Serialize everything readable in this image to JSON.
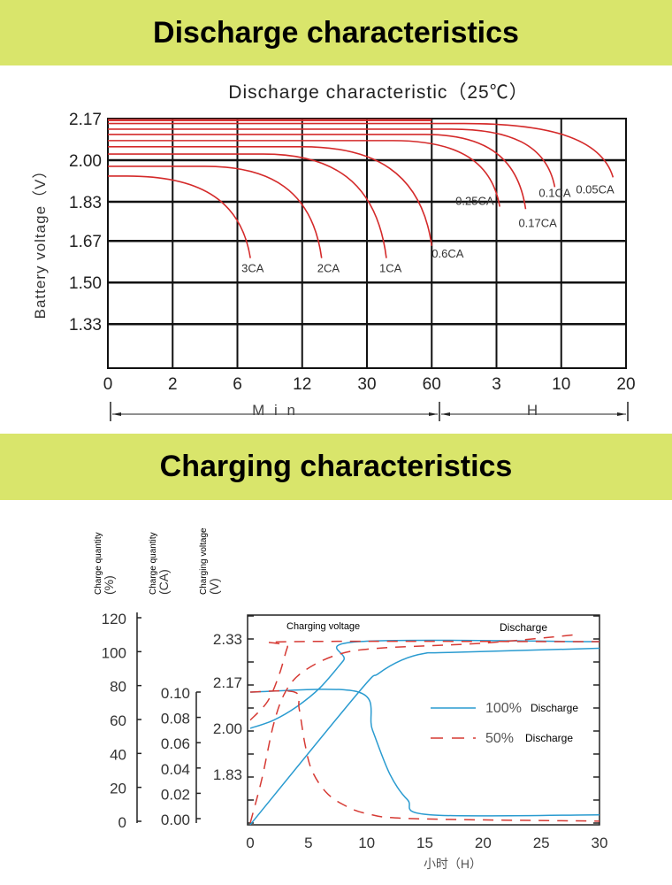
{
  "sections": {
    "discharge_title": "Discharge characteristics",
    "charging_title": "Charging characteristics"
  },
  "chart_data": [
    {
      "type": "line",
      "title": "Discharge characteristic（25℃）",
      "ylabel": "Battery voltage（V）",
      "y_ticks": [
        "2.17",
        "2.00",
        "1.83",
        "1.67",
        "1.50",
        "1.33"
      ],
      "y_values": [
        2.17,
        2.0,
        1.83,
        1.67,
        1.5,
        1.33
      ],
      "ylim": [
        1.16,
        2.17
      ],
      "x_ticks": [
        "0",
        "2",
        "6",
        "12",
        "30",
        "60",
        "3",
        "10",
        "20"
      ],
      "x_units": [
        {
          "label": "M i n",
          "from_tick": 0,
          "to_tick": 5
        },
        {
          "label": "H",
          "from_tick": 5,
          "to_tick": 8
        }
      ],
      "grid": true,
      "color": "#d42a2a",
      "series": [
        {
          "name": "3CA",
          "start_v": 1.935,
          "knee_tick": 0.3,
          "end_tick": 2.2,
          "end_v": 1.6
        },
        {
          "name": "2CA",
          "start_v": 1.975,
          "knee_tick": 1.5,
          "end_tick": 3.3,
          "end_v": 1.6
        },
        {
          "name": "1CA",
          "start_v": 2.025,
          "knee_tick": 2.4,
          "end_tick": 4.3,
          "end_v": 1.6
        },
        {
          "name": "0.6CA",
          "start_v": 2.055,
          "knee_tick": 3.0,
          "end_tick": 5.0,
          "end_v": 1.65
        },
        {
          "name": "0.25CA",
          "start_v": 2.08,
          "knee_tick": 4.4,
          "end_tick": 6.05,
          "end_v": 1.81
        },
        {
          "name": "0.17CA",
          "start_v": 2.105,
          "knee_tick": 4.9,
          "end_tick": 6.45,
          "end_v": 1.8
        },
        {
          "name": "0.1CA",
          "start_v": 2.127,
          "knee_tick": 5.3,
          "end_tick": 6.9,
          "end_v": 1.89
        },
        {
          "name": "0.05CA",
          "start_v": 2.15,
          "knee_tick": 5.5,
          "end_tick": 7.8,
          "end_v": 1.93
        }
      ]
    },
    {
      "type": "line",
      "xlabel": "小时（H）",
      "x_ticks": [
        "0",
        "5",
        "10",
        "15",
        "20",
        "25",
        "30"
      ],
      "xlim": [
        0,
        30
      ],
      "axes": {
        "quantity_pct": {
          "label": "Charge quantity",
          "unit": "(%)",
          "ticks": [
            "120",
            "100",
            "80",
            "60",
            "40",
            "20",
            "0"
          ]
        },
        "current_ca": {
          "label": "Charge quantity",
          "unit": "(CA)",
          "ticks": [
            "0.10",
            "0.08",
            "0.06",
            "0.04",
            "0.02",
            "0.00"
          ]
        },
        "voltage_v": {
          "label": "Charging voltage",
          "unit": "(V)",
          "ticks": [
            "2.33",
            "2.17",
            "2.00",
            "1.83"
          ]
        }
      },
      "annotations": {
        "charging_voltage": "Charging voltage",
        "discharge": "Discharge"
      },
      "legend": [
        {
          "pct": "100%",
          "label": "Discharge",
          "style": "solid",
          "color": "#2a9bd0"
        },
        {
          "pct": "50%",
          "label": "Discharge",
          "style": "dashed",
          "color": "#d63a34"
        }
      ],
      "series": [
        {
          "name": "100% voltage",
          "axis": "voltage_v",
          "style": "solid",
          "points": [
            [
              0,
              2.0
            ],
            [
              2,
              2.03
            ],
            [
              4,
              2.08
            ],
            [
              6,
              2.15
            ],
            [
              8,
              2.25
            ],
            [
              9.3,
              2.32
            ],
            [
              30,
              2.32
            ]
          ]
        },
        {
          "name": "100% current",
          "axis": "current_ca",
          "style": "solid",
          "points": [
            [
              0,
              0.1
            ],
            [
              9.3,
              0.1
            ],
            [
              10.5,
              0.07
            ],
            [
              12,
              0.035
            ],
            [
              13.5,
              0.015
            ],
            [
              15.5,
              0.003
            ],
            [
              30,
              0.003
            ]
          ]
        },
        {
          "name": "100% quantity",
          "axis": "quantity_pct",
          "style": "solid",
          "points": [
            [
              0,
              -2
            ],
            [
              9.3,
              76
            ],
            [
              11,
              87
            ],
            [
              13,
              95
            ],
            [
              15,
              99
            ],
            [
              17,
              99.5
            ],
            [
              30,
              102
            ]
          ]
        },
        {
          "name": "50% voltage",
          "axis": "voltage_v",
          "style": "dashed",
          "points": [
            [
              0,
              2.03
            ],
            [
              1.5,
              2.1
            ],
            [
              2.5,
              2.2
            ],
            [
              3.2,
              2.3
            ],
            [
              3.6,
              2.32
            ],
            [
              30,
              2.32
            ]
          ]
        },
        {
          "name": "50% current",
          "axis": "current_ca",
          "style": "dashed",
          "points": [
            [
              0,
              0.1
            ],
            [
              3.8,
              0.1
            ],
            [
              4.2,
              0.087
            ],
            [
              4.7,
              0.059
            ],
            [
              5.3,
              0.038
            ],
            [
              6.5,
              0.021
            ],
            [
              8,
              0.011
            ],
            [
              10,
              0.004
            ],
            [
              14,
              0.0
            ],
            [
              30,
              -0.002
            ]
          ]
        },
        {
          "name": "50% quantity",
          "axis": "quantity_pct",
          "style": "dashed",
          "points": [
            [
              0,
              -1
            ],
            [
              1,
              25
            ],
            [
              2,
              57
            ],
            [
              3,
              76
            ],
            [
              4.5,
              88
            ],
            [
              7.4,
              98
            ],
            [
              11,
              102
            ],
            [
              20,
              105
            ],
            [
              28,
              110
            ]
          ]
        }
      ]
    }
  ]
}
